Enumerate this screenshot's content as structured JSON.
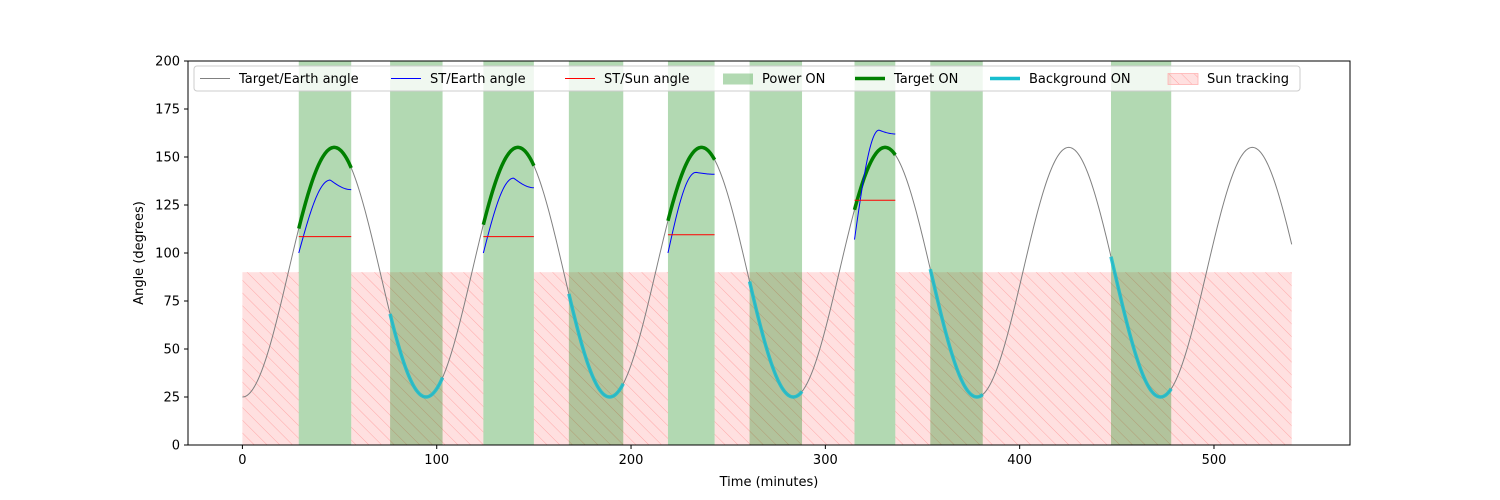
{
  "chart_data": {
    "type": "line",
    "title": "",
    "xlabel": "Time (minutes)",
    "ylabel": "Angle (degrees)",
    "xlim": [
      -28,
      570
    ],
    "ylim": [
      0,
      200
    ],
    "x_ticks": [
      0,
      100,
      200,
      300,
      400,
      500
    ],
    "y_ticks": [
      0,
      25,
      50,
      75,
      100,
      125,
      150,
      175,
      200
    ],
    "grid": false,
    "legend_position": "top",
    "target_earth": {
      "min": 25,
      "max": 155,
      "period": 94.5,
      "phase_min": 0,
      "t_end": 540,
      "color": "#808080"
    },
    "power_on": [
      [
        29,
        56
      ],
      [
        76,
        103
      ],
      [
        124,
        150
      ],
      [
        168,
        196
      ],
      [
        219,
        243
      ],
      [
        261,
        288
      ],
      [
        315,
        336
      ],
      [
        354,
        381
      ],
      [
        447,
        478
      ]
    ],
    "sun_tracking": [
      [
        0,
        29
      ],
      [
        56,
        124
      ],
      [
        150,
        219
      ],
      [
        243,
        315
      ],
      [
        336,
        540
      ]
    ],
    "sun_tracking_level": 90,
    "target_on": [
      [
        29,
        56
      ],
      [
        124,
        150
      ],
      [
        219,
        243
      ],
      [
        315,
        336
      ]
    ],
    "background_on": [
      [
        76,
        103
      ],
      [
        168,
        196
      ],
      [
        261,
        288
      ],
      [
        354,
        381
      ],
      [
        447,
        478
      ]
    ],
    "st_earth": [
      {
        "t0": 29,
        "t1": 56,
        "y0": 100,
        "peak": 138,
        "y1": 133
      },
      {
        "t0": 124,
        "t1": 150,
        "y0": 100,
        "peak": 139,
        "y1": 134
      },
      {
        "t0": 219,
        "t1": 243,
        "y0": 100,
        "peak": 142,
        "y1": 141
      },
      {
        "t0": 315,
        "t1": 336,
        "y0": 107,
        "peak": 164,
        "y1": 162
      }
    ],
    "st_sun": [
      {
        "t0": 29,
        "t1": 56,
        "value": 108.5
      },
      {
        "t0": 124,
        "t1": 150,
        "value": 108.5
      },
      {
        "t0": 219,
        "t1": 243,
        "value": 109.5
      },
      {
        "t0": 315,
        "t1": 336,
        "value": 127.5
      }
    ],
    "colors": {
      "target_earth": "#808080",
      "st_earth": "#0000ff",
      "st_sun": "#ff0000",
      "power_on": "#008000",
      "target_on": "#008000",
      "background_on": "#17becf",
      "sun_tracking": "#ff9999"
    }
  },
  "legend": {
    "items": [
      {
        "label": "Target/Earth angle",
        "kind": "line",
        "color": "#808080",
        "width": 1
      },
      {
        "label": "ST/Earth angle",
        "kind": "line",
        "color": "#0000ff",
        "width": 1
      },
      {
        "label": "ST/Sun angle",
        "kind": "line",
        "color": "#ff0000",
        "width": 1
      },
      {
        "label": "Power ON",
        "kind": "patch",
        "color": "#008000"
      },
      {
        "label": "Target ON",
        "kind": "line",
        "color": "#008000",
        "width": 3.5
      },
      {
        "label": "Background ON",
        "kind": "line",
        "color": "#17becf",
        "width": 3.5
      },
      {
        "label": "Sun tracking",
        "kind": "hatch",
        "color": "#ff9999"
      }
    ]
  }
}
